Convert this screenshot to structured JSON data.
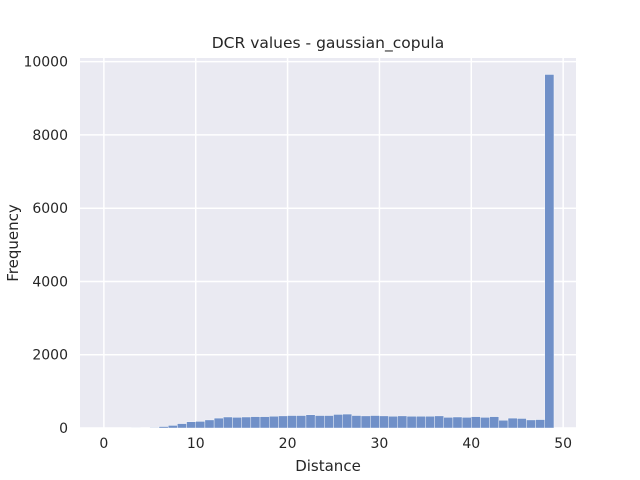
{
  "chart_data": {
    "type": "bar",
    "title": "DCR values - gaussian_copula",
    "xlabel": "Distance",
    "ylabel": "Frequency",
    "xlim": [
      -2.6,
      51.4
    ],
    "ylim": [
      0,
      10100
    ],
    "xticks": [
      0,
      10,
      20,
      30,
      40,
      50
    ],
    "yticks": [
      0,
      2000,
      4000,
      6000,
      8000,
      10000
    ],
    "bin_width": 1,
    "bin_start": 0,
    "bar_color": "#7090c8",
    "background_color": "#eaeaf2",
    "grid": true,
    "series": [
      {
        "values": [
          0,
          0,
          0,
          5,
          10,
          15,
          40,
          70,
          120,
          170,
          180,
          220,
          270,
          300,
          290,
          300,
          310,
          310,
          320,
          330,
          340,
          340,
          360,
          340,
          340,
          370,
          380,
          340,
          330,
          340,
          330,
          320,
          330,
          320,
          320,
          320,
          330,
          290,
          300,
          290,
          310,
          290,
          310,
          210,
          270,
          260,
          220,
          230,
          9650
        ]
      }
    ]
  }
}
